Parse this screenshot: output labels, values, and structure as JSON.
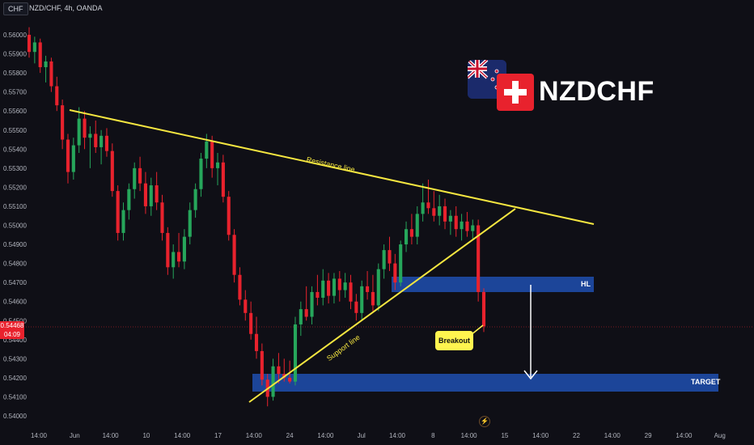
{
  "header": {
    "currency_badge": "CHF",
    "symbol_line": "NZD/CHF, 4h, OANDA"
  },
  "branding": {
    "pair_title": "NZDCHF",
    "flag_icons": [
      "new-zealand-flag-icon",
      "swiss-flag-icon"
    ]
  },
  "price_tag": {
    "price": "0.54468",
    "countdown": "04:09"
  },
  "annotations": {
    "resistance_label": "Resistance line",
    "support_label": "Support line",
    "breakout_label": "Breakout",
    "hl_label": "HL",
    "target_label": "TARGET"
  },
  "colors": {
    "background": "#0f0f16",
    "bull": "#26a65b",
    "bear": "#e8222d",
    "trendline": "#f5e640",
    "zone": "#1f4fb0",
    "breakout_bg": "#fff44f"
  },
  "chart_data": {
    "type": "candlestick",
    "title": "NZD/CHF, 4h, OANDA",
    "ylim": [
      0.5397,
      0.5609
    ],
    "y_ticks": [
      "0.56000",
      "0.55900",
      "0.55800",
      "0.55700",
      "0.55600",
      "0.55500",
      "0.55400",
      "0.55300",
      "0.55200",
      "0.55100",
      "0.55000",
      "0.54900",
      "0.54800",
      "0.54700",
      "0.54600",
      "0.54500",
      "0.54400",
      "0.54300",
      "0.54200",
      "0.54100",
      "0.54000"
    ],
    "x_ticks": [
      "14:00",
      "Jun",
      "14:00",
      "10",
      "14:00",
      "17",
      "14:00",
      "24",
      "14:00",
      "Jul",
      "14:00",
      "8",
      "14:00",
      "15",
      "14:00",
      "22",
      "14:00",
      "29",
      "14:00",
      "Aug"
    ],
    "candles": [
      {
        "o": 0.56,
        "h": 0.5604,
        "l": 0.5588,
        "c": 0.5591
      },
      {
        "o": 0.5591,
        "h": 0.5599,
        "l": 0.5585,
        "c": 0.5596
      },
      {
        "o": 0.5596,
        "h": 0.5598,
        "l": 0.558,
        "c": 0.5583
      },
      {
        "o": 0.5583,
        "h": 0.5589,
        "l": 0.5575,
        "c": 0.5586
      },
      {
        "o": 0.5586,
        "h": 0.5588,
        "l": 0.557,
        "c": 0.5573
      },
      {
        "o": 0.5573,
        "h": 0.5578,
        "l": 0.556,
        "c": 0.5563
      },
      {
        "o": 0.5563,
        "h": 0.5566,
        "l": 0.554,
        "c": 0.5545
      },
      {
        "o": 0.5545,
        "h": 0.5548,
        "l": 0.5522,
        "c": 0.5528
      },
      {
        "o": 0.5528,
        "h": 0.5546,
        "l": 0.5524,
        "c": 0.5542
      },
      {
        "o": 0.5542,
        "h": 0.5562,
        "l": 0.5538,
        "c": 0.5556
      },
      {
        "o": 0.5556,
        "h": 0.556,
        "l": 0.554,
        "c": 0.5546
      },
      {
        "o": 0.5546,
        "h": 0.5552,
        "l": 0.553,
        "c": 0.5548
      },
      {
        "o": 0.5548,
        "h": 0.5555,
        "l": 0.5538,
        "c": 0.5541
      },
      {
        "o": 0.5541,
        "h": 0.555,
        "l": 0.5532,
        "c": 0.5547
      },
      {
        "o": 0.5547,
        "h": 0.5551,
        "l": 0.5536,
        "c": 0.5539
      },
      {
        "o": 0.5539,
        "h": 0.5543,
        "l": 0.5515,
        "c": 0.5518
      },
      {
        "o": 0.5518,
        "h": 0.5521,
        "l": 0.5492,
        "c": 0.5496
      },
      {
        "o": 0.5496,
        "h": 0.5512,
        "l": 0.5492,
        "c": 0.5508
      },
      {
        "o": 0.5508,
        "h": 0.5522,
        "l": 0.5503,
        "c": 0.5519
      },
      {
        "o": 0.5519,
        "h": 0.5533,
        "l": 0.5514,
        "c": 0.553
      },
      {
        "o": 0.553,
        "h": 0.5536,
        "l": 0.5518,
        "c": 0.5522
      },
      {
        "o": 0.5522,
        "h": 0.5528,
        "l": 0.5506,
        "c": 0.551
      },
      {
        "o": 0.551,
        "h": 0.5525,
        "l": 0.5505,
        "c": 0.5521
      },
      {
        "o": 0.5521,
        "h": 0.5528,
        "l": 0.5508,
        "c": 0.5512
      },
      {
        "o": 0.5512,
        "h": 0.5516,
        "l": 0.5492,
        "c": 0.5496
      },
      {
        "o": 0.5496,
        "h": 0.5499,
        "l": 0.5474,
        "c": 0.5478
      },
      {
        "o": 0.5478,
        "h": 0.549,
        "l": 0.5472,
        "c": 0.5486
      },
      {
        "o": 0.5486,
        "h": 0.5496,
        "l": 0.5478,
        "c": 0.5481
      },
      {
        "o": 0.5481,
        "h": 0.5498,
        "l": 0.5477,
        "c": 0.5494
      },
      {
        "o": 0.5494,
        "h": 0.5512,
        "l": 0.549,
        "c": 0.5508
      },
      {
        "o": 0.5508,
        "h": 0.5522,
        "l": 0.5504,
        "c": 0.5519
      },
      {
        "o": 0.5519,
        "h": 0.5538,
        "l": 0.5515,
        "c": 0.5535
      },
      {
        "o": 0.5535,
        "h": 0.5548,
        "l": 0.553,
        "c": 0.5544
      },
      {
        "o": 0.5544,
        "h": 0.5547,
        "l": 0.5525,
        "c": 0.553
      },
      {
        "o": 0.553,
        "h": 0.5538,
        "l": 0.5521,
        "c": 0.5533
      },
      {
        "o": 0.5533,
        "h": 0.5537,
        "l": 0.5512,
        "c": 0.5515
      },
      {
        "o": 0.5515,
        "h": 0.5518,
        "l": 0.5492,
        "c": 0.5495
      },
      {
        "o": 0.5495,
        "h": 0.5498,
        "l": 0.547,
        "c": 0.5474
      },
      {
        "o": 0.5474,
        "h": 0.5478,
        "l": 0.5458,
        "c": 0.5461
      },
      {
        "o": 0.5461,
        "h": 0.5466,
        "l": 0.545,
        "c": 0.5454
      },
      {
        "o": 0.5454,
        "h": 0.546,
        "l": 0.544,
        "c": 0.5443
      },
      {
        "o": 0.5443,
        "h": 0.5452,
        "l": 0.543,
        "c": 0.5434
      },
      {
        "o": 0.5434,
        "h": 0.5438,
        "l": 0.5416,
        "c": 0.5419
      },
      {
        "o": 0.5419,
        "h": 0.5422,
        "l": 0.5405,
        "c": 0.541
      },
      {
        "o": 0.541,
        "h": 0.543,
        "l": 0.5408,
        "c": 0.5426
      },
      {
        "o": 0.5426,
        "h": 0.5433,
        "l": 0.5417,
        "c": 0.5422
      },
      {
        "o": 0.5422,
        "h": 0.543,
        "l": 0.5418,
        "c": 0.542
      },
      {
        "o": 0.542,
        "h": 0.5429,
        "l": 0.5417,
        "c": 0.5418
      },
      {
        "o": 0.5418,
        "h": 0.5452,
        "l": 0.5416,
        "c": 0.5448
      },
      {
        "o": 0.5448,
        "h": 0.546,
        "l": 0.5442,
        "c": 0.5456
      },
      {
        "o": 0.5456,
        "h": 0.5468,
        "l": 0.545,
        "c": 0.5452
      },
      {
        "o": 0.5452,
        "h": 0.5468,
        "l": 0.5448,
        "c": 0.5465
      },
      {
        "o": 0.5465,
        "h": 0.5474,
        "l": 0.5458,
        "c": 0.5462
      },
      {
        "o": 0.5462,
        "h": 0.5477,
        "l": 0.5458,
        "c": 0.5471
      },
      {
        "o": 0.5471,
        "h": 0.5475,
        "l": 0.5459,
        "c": 0.5463
      },
      {
        "o": 0.5463,
        "h": 0.5475,
        "l": 0.5459,
        "c": 0.5472
      },
      {
        "o": 0.5472,
        "h": 0.5476,
        "l": 0.546,
        "c": 0.5466
      },
      {
        "o": 0.5466,
        "h": 0.5475,
        "l": 0.5462,
        "c": 0.547
      },
      {
        "o": 0.547,
        "h": 0.5474,
        "l": 0.5456,
        "c": 0.546
      },
      {
        "o": 0.546,
        "h": 0.5464,
        "l": 0.545,
        "c": 0.5454
      },
      {
        "o": 0.5454,
        "h": 0.5471,
        "l": 0.545,
        "c": 0.5468
      },
      {
        "o": 0.5468,
        "h": 0.5476,
        "l": 0.5461,
        "c": 0.5465
      },
      {
        "o": 0.5465,
        "h": 0.5474,
        "l": 0.5455,
        "c": 0.5458
      },
      {
        "o": 0.5458,
        "h": 0.548,
        "l": 0.5455,
        "c": 0.5477
      },
      {
        "o": 0.5477,
        "h": 0.549,
        "l": 0.5472,
        "c": 0.5487
      },
      {
        "o": 0.5487,
        "h": 0.5494,
        "l": 0.5476,
        "c": 0.548
      },
      {
        "o": 0.548,
        "h": 0.5485,
        "l": 0.5466,
        "c": 0.547
      },
      {
        "o": 0.547,
        "h": 0.5492,
        "l": 0.5468,
        "c": 0.549
      },
      {
        "o": 0.549,
        "h": 0.5502,
        "l": 0.5486,
        "c": 0.5498
      },
      {
        "o": 0.5498,
        "h": 0.5506,
        "l": 0.549,
        "c": 0.5494
      },
      {
        "o": 0.5494,
        "h": 0.551,
        "l": 0.549,
        "c": 0.5506
      },
      {
        "o": 0.5506,
        "h": 0.5522,
        "l": 0.5502,
        "c": 0.5512
      },
      {
        "o": 0.5512,
        "h": 0.5524,
        "l": 0.5506,
        "c": 0.5509
      },
      {
        "o": 0.5509,
        "h": 0.5518,
        "l": 0.5502,
        "c": 0.5505
      },
      {
        "o": 0.5505,
        "h": 0.5516,
        "l": 0.55,
        "c": 0.551
      },
      {
        "o": 0.551,
        "h": 0.5514,
        "l": 0.5498,
        "c": 0.5502
      },
      {
        "o": 0.5502,
        "h": 0.5508,
        "l": 0.5495,
        "c": 0.5505
      },
      {
        "o": 0.5505,
        "h": 0.551,
        "l": 0.5494,
        "c": 0.5498
      },
      {
        "o": 0.5498,
        "h": 0.5506,
        "l": 0.5492,
        "c": 0.5502
      },
      {
        "o": 0.5502,
        "h": 0.5507,
        "l": 0.5494,
        "c": 0.5497
      },
      {
        "o": 0.5497,
        "h": 0.5503,
        "l": 0.5493,
        "c": 0.55
      },
      {
        "o": 0.55,
        "h": 0.5503,
        "l": 0.546,
        "c": 0.5465
      },
      {
        "o": 0.5465,
        "h": 0.5467,
        "l": 0.5444,
        "c": 0.5447
      }
    ]
  }
}
